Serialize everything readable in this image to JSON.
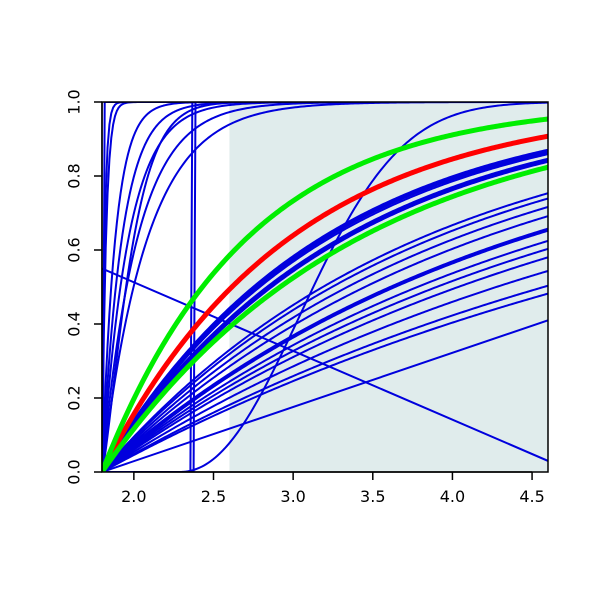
{
  "chart_data": {
    "type": "line",
    "title": "",
    "xlabel": "",
    "ylabel": "",
    "xlim": [
      1.8,
      4.6
    ],
    "ylim": [
      0.0,
      1.0
    ],
    "x_ticks": [
      2.0,
      2.5,
      3.0,
      3.5,
      4.0,
      4.5
    ],
    "x_tick_labels": [
      "2.0",
      "2.5",
      "3.0",
      "3.5",
      "4.0",
      "4.5"
    ],
    "y_ticks": [
      0.0,
      0.2,
      0.4,
      0.6,
      0.8,
      1.0
    ],
    "y_tick_labels": [
      "0.0",
      "0.2",
      "0.4",
      "0.6",
      "0.8",
      "1.0"
    ],
    "grid": false,
    "legend": "none",
    "shaded_region": {
      "x_from": 2.6,
      "x_to": 4.6,
      "color": "#e0ecec"
    },
    "colors": {
      "blue": "#0000dd",
      "red": "#ff0000",
      "green": "#00ee00"
    },
    "series": [
      {
        "color": "#ff0000",
        "width": 5,
        "kind": "exp_cdf",
        "x0": 1.8,
        "rate": 0.85
      },
      {
        "color": "#00ee00",
        "width": 5,
        "kind": "exp_cdf",
        "x0": 1.8,
        "rate": 1.1
      },
      {
        "color": "#00ee00",
        "width": 5,
        "kind": "exp_cdf",
        "x0": 1.8,
        "rate": 0.62
      },
      {
        "color": "#0000dd",
        "width": 5,
        "kind": "exp_cdf",
        "x0": 1.8,
        "rate": 0.66
      },
      {
        "color": "#0000dd",
        "width": 5,
        "kind": "exp_cdf",
        "x0": 1.8,
        "rate": 0.72
      },
      {
        "color": "#0000dd",
        "width": 2,
        "kind": "exp_cdf",
        "x0": 1.8,
        "rate": 0.7
      },
      {
        "color": "#0000dd",
        "width": 4,
        "kind": "exp_cdf",
        "x0": 1.8,
        "rate": 0.38
      },
      {
        "color": "#0000dd",
        "width": 2,
        "kind": "exp_cdf",
        "x0": 1.8,
        "rate": 0.5
      },
      {
        "color": "#0000dd",
        "width": 2,
        "kind": "exp_cdf",
        "x0": 1.8,
        "rate": 0.48
      },
      {
        "color": "#0000dd",
        "width": 2,
        "kind": "exp_cdf",
        "x0": 1.8,
        "rate": 0.45
      },
      {
        "color": "#0000dd",
        "width": 2,
        "kind": "exp_cdf",
        "x0": 1.8,
        "rate": 0.42
      },
      {
        "color": "#0000dd",
        "width": 2,
        "kind": "exp_cdf",
        "x0": 1.8,
        "rate": 0.35
      },
      {
        "color": "#0000dd",
        "width": 2,
        "kind": "exp_cdf",
        "x0": 1.8,
        "rate": 0.33
      },
      {
        "color": "#0000dd",
        "width": 2,
        "kind": "exp_cdf",
        "x0": 1.8,
        "rate": 0.31
      },
      {
        "color": "#0000dd",
        "width": 2,
        "kind": "exp_cdf",
        "x0": 1.8,
        "rate": 0.28
      },
      {
        "color": "#0000dd",
        "width": 2,
        "kind": "exp_cdf",
        "x0": 1.8,
        "rate": 0.25
      },
      {
        "color": "#0000dd",
        "width": 2,
        "kind": "exp_cdf",
        "x0": 1.8,
        "rate": 0.235
      },
      {
        "color": "#0000dd",
        "width": 2,
        "kind": "linear",
        "points": [
          [
            1.8,
            0.0
          ],
          [
            4.6,
            0.41
          ]
        ]
      },
      {
        "color": "#0000dd",
        "width": 2,
        "kind": "linear",
        "points": [
          [
            1.8,
            0.55
          ],
          [
            4.6,
            0.03
          ]
        ]
      },
      {
        "color": "#0000dd",
        "width": 2,
        "kind": "shifted_cdf",
        "x0": 2.28,
        "rate": 1.0,
        "k": 2.2
      },
      {
        "color": "#0000dd",
        "width": 2,
        "kind": "shifted_cdf",
        "x0": 1.8,
        "rate": 8.0,
        "k": 1.0
      },
      {
        "color": "#0000dd",
        "width": 2,
        "kind": "shifted_cdf",
        "x0": 1.8,
        "rate": 12.0,
        "k": 1.0
      },
      {
        "color": "#0000dd",
        "width": 2,
        "kind": "shifted_cdf",
        "x0": 1.8,
        "rate": 6.0,
        "k": 1.0
      },
      {
        "color": "#0000dd",
        "width": 2,
        "kind": "shifted_cdf",
        "x0": 1.8,
        "rate": 4.5,
        "k": 1.0
      },
      {
        "color": "#0000dd",
        "width": 2,
        "kind": "shifted_cdf",
        "x0": 1.8,
        "rate": 3.5,
        "k": 1.0
      },
      {
        "color": "#0000dd",
        "width": 2,
        "kind": "shifted_cdf",
        "x0": 1.8,
        "rate": 40.0,
        "k": 1.0
      },
      {
        "color": "#0000dd",
        "width": 2,
        "kind": "shifted_cdf",
        "x0": 1.8,
        "rate": 60.0,
        "k": 1.0
      },
      {
        "color": "#0000dd",
        "width": 2,
        "kind": "shifted_cdf",
        "x0": 1.8,
        "rate": 5.0,
        "k": 1.3
      },
      {
        "color": "#0000dd",
        "width": 2,
        "kind": "step",
        "x_from": 1.8,
        "x_step": 2.355,
        "x_to": 2.39
      },
      {
        "color": "#0000dd",
        "width": 2,
        "kind": "step",
        "x_from": 1.8,
        "x_step": 2.375,
        "x_to": 2.41
      },
      {
        "color": "#0000dd",
        "width": 2,
        "kind": "step",
        "x_from": 1.8,
        "x_step": 1.805,
        "x_to": 1.82
      }
    ]
  }
}
